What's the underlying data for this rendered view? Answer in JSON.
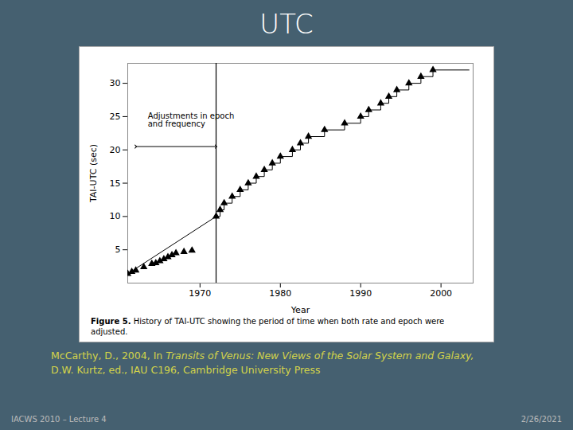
{
  "chart_data": {
    "type": "line",
    "title": "UTC",
    "xlabel": "Year",
    "ylabel": "TAI-UTC (sec)",
    "xlim": [
      1961,
      2004
    ],
    "ylim": [
      0,
      33
    ],
    "xticks": [
      1970,
      1980,
      1990,
      2000
    ],
    "yticks": [
      5,
      10,
      15,
      20,
      25,
      30
    ],
    "grid": false,
    "color": "#000000",
    "marker": "triangle",
    "line_style": "solid",
    "x": [
      1961.0,
      1961.5,
      1962.0,
      1963.0,
      1964.0,
      1964.5,
      1965.0,
      1965.5,
      1966.0,
      1966.5,
      1967.0,
      1968.0,
      1969.0,
      1972.0,
      1972.5,
      1973.0,
      1974.0,
      1975.0,
      1976.0,
      1977.0,
      1978.0,
      1979.0,
      1980.0,
      1981.5,
      1982.5,
      1983.5,
      1985.5,
      1988.0,
      1990.0,
      1991.0,
      1992.5,
      1993.5,
      1994.5,
      1996.0,
      1997.5,
      1999.0
    ],
    "values": [
      1.4,
      1.7,
      1.9,
      2.4,
      2.9,
      3.0,
      3.3,
      3.6,
      3.9,
      4.2,
      4.5,
      4.7,
      4.9,
      10.0,
      11.0,
      12.0,
      13.0,
      14.0,
      15.0,
      16.0,
      17.0,
      18.0,
      19.0,
      20.0,
      21.0,
      22.0,
      23.0,
      24.0,
      25.0,
      26.0,
      27.0,
      28.0,
      29.0,
      30.0,
      31.0,
      32.0
    ],
    "step_end_x": 2003.5,
    "vline_x": 1972,
    "annotations": [
      {
        "text": "Adjustments in epoch\nand frequency",
        "x": 1963.5,
        "y": 25.5
      }
    ],
    "arrow": {
      "x1": 1962,
      "x2": 1972,
      "y": 20.5
    },
    "caption_bold": "Figure 5.",
    "caption_text": "History of TAI-UTC showing the period of time when both rate and epoch were adjusted.",
    "citation_line1_normal": "McCarthy, D., 2004, In ",
    "citation_line1_italic": "Transits of Venus: New Views of the Solar System and Galaxy,",
    "citation_line2": "D.W. Kurtz, ed., IAU C196, Cambridge University Press",
    "footer_left": "IACWS 2010 – Lecture 4",
    "footer_right": "2/26/2021"
  }
}
